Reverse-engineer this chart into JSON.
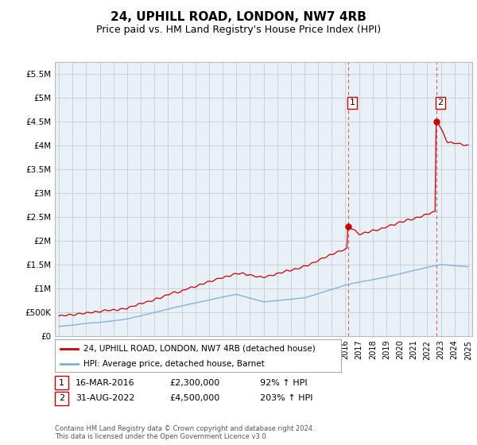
{
  "title": "24, UPHILL ROAD, LONDON, NW7 4RB",
  "subtitle": "Price paid vs. HM Land Registry's House Price Index (HPI)",
  "title_fontsize": 11,
  "subtitle_fontsize": 9,
  "bg_color": "#ffffff",
  "grid_color": "#cccccc",
  "plot_bg": "#dce8f5",
  "plot_bg_highlight": "#dce8f5",
  "red_line_color": "#cc0000",
  "blue_line_color": "#7aadd4",
  "marker1_x": 2016.21,
  "marker1_y": 2300000,
  "marker2_x": 2022.67,
  "marker2_y": 4500000,
  "dashed_color": "#cc0000",
  "legend1": "24, UPHILL ROAD, LONDON, NW7 4RB (detached house)",
  "legend2": "HPI: Average price, detached house, Barnet",
  "table_row1_num": "1",
  "table_row1_date": "16-MAR-2016",
  "table_row1_price": "£2,300,000",
  "table_row1_hpi": "92% ↑ HPI",
  "table_row2_num": "2",
  "table_row2_date": "31-AUG-2022",
  "table_row2_price": "£4,500,000",
  "table_row2_hpi": "203% ↑ HPI",
  "footer": "Contains HM Land Registry data © Crown copyright and database right 2024.\nThis data is licensed under the Open Government Licence v3.0.",
  "ylim": [
    0,
    5750000
  ],
  "yticks": [
    0,
    500000,
    1000000,
    1500000,
    2000000,
    2500000,
    3000000,
    3500000,
    4000000,
    4500000,
    5000000,
    5500000
  ],
  "ytick_labels": [
    "£0",
    "£500K",
    "£1M",
    "£1.5M",
    "£2M",
    "£2.5M",
    "£3M",
    "£3.5M",
    "£4M",
    "£4.5M",
    "£5M",
    "£5.5M"
  ],
  "xlim_start": 1994.7,
  "xlim_end": 2025.3,
  "xticks": [
    1995,
    1996,
    1997,
    1998,
    1999,
    2000,
    2001,
    2002,
    2003,
    2004,
    2005,
    2006,
    2007,
    2008,
    2009,
    2010,
    2011,
    2012,
    2013,
    2014,
    2015,
    2016,
    2017,
    2018,
    2019,
    2020,
    2021,
    2022,
    2023,
    2024,
    2025
  ]
}
